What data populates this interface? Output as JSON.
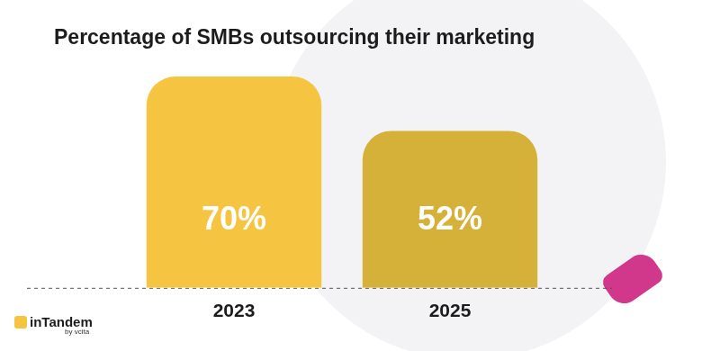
{
  "chart_data": {
    "type": "bar",
    "title": "Percentage of SMBs outsourcing their marketing",
    "categories": [
      "2023",
      "2025"
    ],
    "values": [
      70,
      52
    ],
    "value_labels": [
      "70%",
      "52%"
    ],
    "colors": [
      "#f5c542",
      "#d6b13a"
    ],
    "ylim": [
      0,
      70
    ],
    "grid": false,
    "data_labels": true,
    "tick_labels": "x",
    "annotations": [
      "inTandem",
      "by vcita"
    ]
  }
}
